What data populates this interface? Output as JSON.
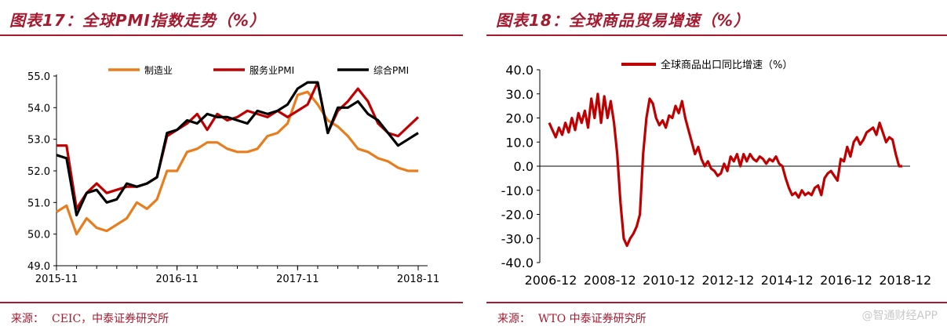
{
  "left": {
    "title": "图表17：全球PMI指数走势（%）",
    "source_label": "来源：",
    "source_text": "CEIC，中泰证券研究所",
    "chart_data": {
      "type": "line",
      "xlim": [
        "2015-11",
        "2018-11"
      ],
      "ylim": [
        49.0,
        55.0
      ],
      "yticks": [
        "49.0",
        "50.0",
        "51.0",
        "52.0",
        "53.0",
        "54.0",
        "55.0"
      ],
      "xtick_labels": [
        "2015-11",
        "2016-11",
        "2017-11",
        "2018-11"
      ],
      "legend_position": "top",
      "series": [
        {
          "name": "制造业",
          "color": "#e87d1e",
          "values": [
            50.7,
            50.9,
            50.0,
            50.5,
            50.2,
            50.1,
            50.3,
            50.5,
            51.0,
            50.8,
            51.1,
            52.0,
            52.0,
            52.6,
            52.7,
            52.9,
            52.9,
            52.7,
            52.6,
            52.6,
            52.7,
            53.1,
            53.2,
            53.5,
            54.4,
            54.5,
            54.1,
            53.6,
            53.4,
            53.1,
            52.7,
            52.6,
            52.4,
            52.3,
            52.1,
            52.0,
            52.0
          ]
        },
        {
          "name": "服务业PMI",
          "color": "#c00000",
          "values": [
            52.8,
            52.8,
            50.8,
            51.3,
            51.6,
            51.3,
            51.4,
            51.5,
            51.5,
            51.6,
            51.8,
            53.1,
            53.3,
            53.5,
            53.8,
            53.3,
            53.8,
            53.6,
            53.7,
            53.9,
            53.8,
            53.7,
            53.9,
            53.7,
            53.9,
            54.1,
            54.8,
            53.2,
            53.9,
            54.2,
            54.6,
            54.2,
            53.5,
            53.2,
            53.1,
            53.4,
            53.7
          ]
        },
        {
          "name": "综合PMI",
          "color": "#000000",
          "values": [
            52.5,
            52.4,
            50.6,
            51.3,
            51.4,
            51.0,
            51.1,
            51.6,
            51.5,
            51.6,
            51.8,
            53.2,
            53.3,
            53.6,
            53.5,
            53.8,
            53.7,
            53.7,
            53.6,
            53.5,
            53.9,
            53.8,
            53.9,
            54.1,
            54.6,
            54.8,
            54.8,
            53.2,
            54.0,
            54.0,
            54.2,
            53.8,
            53.6,
            53.2,
            52.8,
            53.0,
            53.2
          ]
        }
      ]
    }
  },
  "right": {
    "title": "图表18：全球商品贸易增速（%）",
    "source_label": "来源：",
    "source_text": "WTO 中泰证券研究所",
    "chart_data": {
      "type": "line",
      "xlim": [
        "2006-12",
        "2018-12"
      ],
      "ylim": [
        -40.0,
        40.0
      ],
      "yticks": [
        "-40.0",
        "-30.0",
        "-20.0",
        "-10.0",
        "0.0",
        "10.0",
        "20.0",
        "30.0",
        "40.0"
      ],
      "xtick_labels": [
        "2006-12",
        "2008-12",
        "2010-12",
        "2012-12",
        "2014-12",
        "2016-12",
        "2018-12"
      ],
      "legend_position": "top",
      "series": [
        {
          "name": "全球商品出口同比增速（%）",
          "color": "#c00000",
          "values": [
            18,
            15,
            12,
            16,
            13,
            18,
            14,
            20,
            15,
            22,
            18,
            23,
            16,
            28,
            20,
            30,
            18,
            29,
            20,
            27,
            18,
            5,
            -15,
            -30,
            -33,
            -30,
            -28,
            -25,
            -20,
            5,
            20,
            28,
            26,
            20,
            17,
            19,
            16,
            21,
            20,
            25,
            22,
            27,
            20,
            15,
            10,
            5,
            8,
            3,
            0,
            2,
            -1,
            -2,
            -4,
            -3,
            1,
            -2,
            4,
            2,
            5,
            0,
            5,
            2,
            5,
            3,
            2,
            4,
            3,
            1,
            3,
            2,
            4,
            1,
            0,
            -5,
            -9,
            -12,
            -11,
            -13,
            -10,
            -12,
            -11,
            -12,
            -9,
            -8,
            -12,
            -5,
            -3,
            -2,
            -4,
            -6,
            3,
            2,
            8,
            4,
            10,
            12,
            9,
            11,
            14,
            15,
            16,
            13,
            18,
            14,
            10,
            12,
            11,
            5,
            0,
            0
          ]
        }
      ]
    }
  },
  "watermark": "@智通财经APP"
}
